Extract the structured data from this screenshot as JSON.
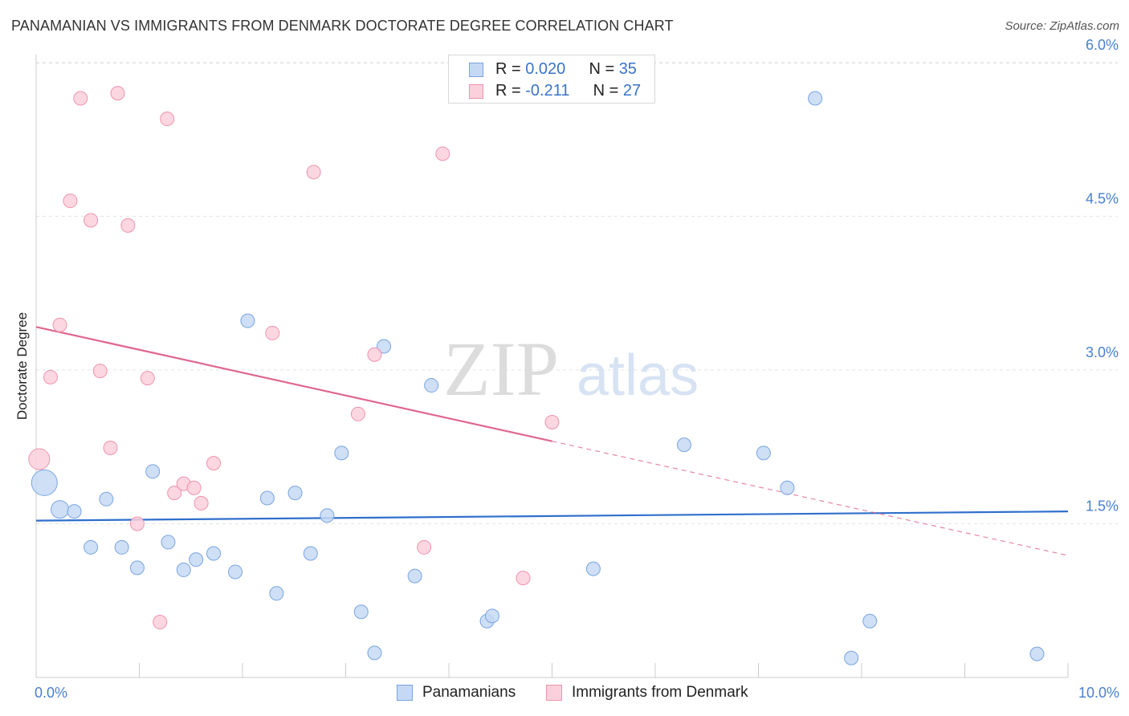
{
  "title": "PANAMANIAN VS IMMIGRANTS FROM DENMARK DOCTORATE DEGREE CORRELATION CHART",
  "source": "Source: ZipAtlas.com",
  "watermark": {
    "zip": "ZIP",
    "atlas": "atlas"
  },
  "legend": {
    "rows": [
      {
        "r_label": "R = ",
        "r_value": "0.020",
        "n_label": "N = ",
        "n_value": "35"
      },
      {
        "r_label": "R = ",
        "r_value": "-0.211",
        "n_label": "N = ",
        "n_value": "27"
      }
    ]
  },
  "bottom_legend": [
    {
      "label": "Panamanians"
    },
    {
      "label": "Immigrants from Denmark"
    }
  ],
  "chart_data": {
    "type": "scatter",
    "title": "PANAMANIAN VS IMMIGRANTS FROM DENMARK DOCTORATE DEGREE CORRELATION CHART",
    "xlabel": "",
    "ylabel": "Doctorate Degree",
    "xlim": [
      0,
      10
    ],
    "ylim": [
      0,
      6.3
    ],
    "x_tick_labels": [
      "0.0%",
      "10.0%"
    ],
    "y_ticks": [
      1.5,
      3.0,
      4.5,
      6.0
    ],
    "y_tick_labels": [
      "1.5%",
      "3.0%",
      "4.5%",
      "6.0%"
    ],
    "grid": true,
    "colors": {
      "blue_fill": "#c5d9f5",
      "blue_stroke": "#7aa5e0",
      "blue_line": "#2f6fcc",
      "pink_fill": "#fbd0dc",
      "pink_stroke": "#ee93ad",
      "pink_line": "#e0678f",
      "tick_text": "#4a80d0",
      "grid": "#e3e3e3"
    },
    "series": [
      {
        "name": "Panamanians",
        "points": [
          {
            "x": 0.08,
            "y": 1.9,
            "big": true
          },
          {
            "x": 0.23,
            "y": 1.64,
            "big": false
          },
          {
            "x": 0.37,
            "y": 1.62
          },
          {
            "x": 0.53,
            "y": 1.27
          },
          {
            "x": 0.68,
            "y": 1.74
          },
          {
            "x": 0.83,
            "y": 1.27
          },
          {
            "x": 0.98,
            "y": 1.07
          },
          {
            "x": 1.13,
            "y": 2.01
          },
          {
            "x": 1.28,
            "y": 1.32
          },
          {
            "x": 1.43,
            "y": 1.05
          },
          {
            "x": 1.55,
            "y": 1.15
          },
          {
            "x": 1.72,
            "y": 1.21
          },
          {
            "x": 1.93,
            "y": 1.03
          },
          {
            "x": 2.05,
            "y": 3.48
          },
          {
            "x": 2.24,
            "y": 1.75
          },
          {
            "x": 2.33,
            "y": 0.82
          },
          {
            "x": 2.51,
            "y": 1.8
          },
          {
            "x": 2.66,
            "y": 1.21
          },
          {
            "x": 2.82,
            "y": 1.58
          },
          {
            "x": 2.96,
            "y": 2.19
          },
          {
            "x": 3.15,
            "y": 0.64
          },
          {
            "x": 3.28,
            "y": 0.24
          },
          {
            "x": 3.37,
            "y": 3.23
          },
          {
            "x": 3.67,
            "y": 0.99
          },
          {
            "x": 3.83,
            "y": 2.85
          },
          {
            "x": 4.37,
            "y": 0.55
          },
          {
            "x": 4.42,
            "y": 0.6
          },
          {
            "x": 5.4,
            "y": 1.06
          },
          {
            "x": 6.28,
            "y": 2.27
          },
          {
            "x": 7.05,
            "y": 2.19
          },
          {
            "x": 7.28,
            "y": 1.85
          },
          {
            "x": 7.55,
            "y": 5.65
          },
          {
            "x": 7.9,
            "y": 0.19
          },
          {
            "x": 8.08,
            "y": 0.55
          },
          {
            "x": 9.7,
            "y": 0.23
          }
        ],
        "trend": {
          "x0": 0.0,
          "y0": 1.53,
          "x1": 10.0,
          "y1": 1.62,
          "dashed_from": null
        }
      },
      {
        "name": "Immigrants from Denmark",
        "points": [
          {
            "x": 0.03,
            "y": 2.13,
            "big": true
          },
          {
            "x": 0.14,
            "y": 2.93
          },
          {
            "x": 0.23,
            "y": 3.44
          },
          {
            "x": 0.33,
            "y": 4.65
          },
          {
            "x": 0.43,
            "y": 5.65
          },
          {
            "x": 0.53,
            "y": 4.46
          },
          {
            "x": 0.62,
            "y": 2.99
          },
          {
            "x": 0.72,
            "y": 2.24
          },
          {
            "x": 0.79,
            "y": 5.7
          },
          {
            "x": 0.89,
            "y": 4.41
          },
          {
            "x": 0.98,
            "y": 1.5
          },
          {
            "x": 1.08,
            "y": 2.92
          },
          {
            "x": 1.2,
            "y": 0.54
          },
          {
            "x": 1.27,
            "y": 5.45
          },
          {
            "x": 1.34,
            "y": 1.8
          },
          {
            "x": 1.43,
            "y": 1.89
          },
          {
            "x": 1.53,
            "y": 1.85
          },
          {
            "x": 1.6,
            "y": 1.7
          },
          {
            "x": 1.72,
            "y": 2.09
          },
          {
            "x": 2.29,
            "y": 3.36
          },
          {
            "x": 2.69,
            "y": 4.93
          },
          {
            "x": 3.12,
            "y": 2.57
          },
          {
            "x": 3.28,
            "y": 3.15
          },
          {
            "x": 3.76,
            "y": 1.27
          },
          {
            "x": 3.94,
            "y": 5.11
          },
          {
            "x": 4.72,
            "y": 0.97
          },
          {
            "x": 5.0,
            "y": 2.49
          }
        ],
        "trend": {
          "x0": 0.0,
          "y0": 3.42,
          "x1": 10.0,
          "y1": 1.19,
          "dashed_from": 5.0
        }
      }
    ]
  }
}
